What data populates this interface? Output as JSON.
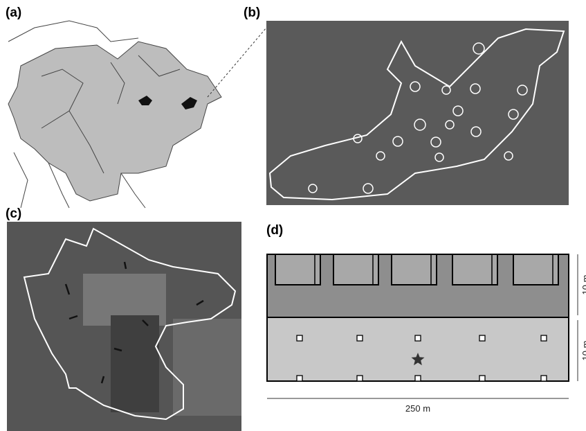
{
  "panels": [
    {
      "label": "(a)"
    },
    {
      "label": "(b)"
    },
    {
      "label": "(c)"
    },
    {
      "label": "(d)"
    }
  ],
  "diagram": {
    "width_label": "250 m",
    "height_labels": [
      "10 m",
      "10 m"
    ]
  }
}
